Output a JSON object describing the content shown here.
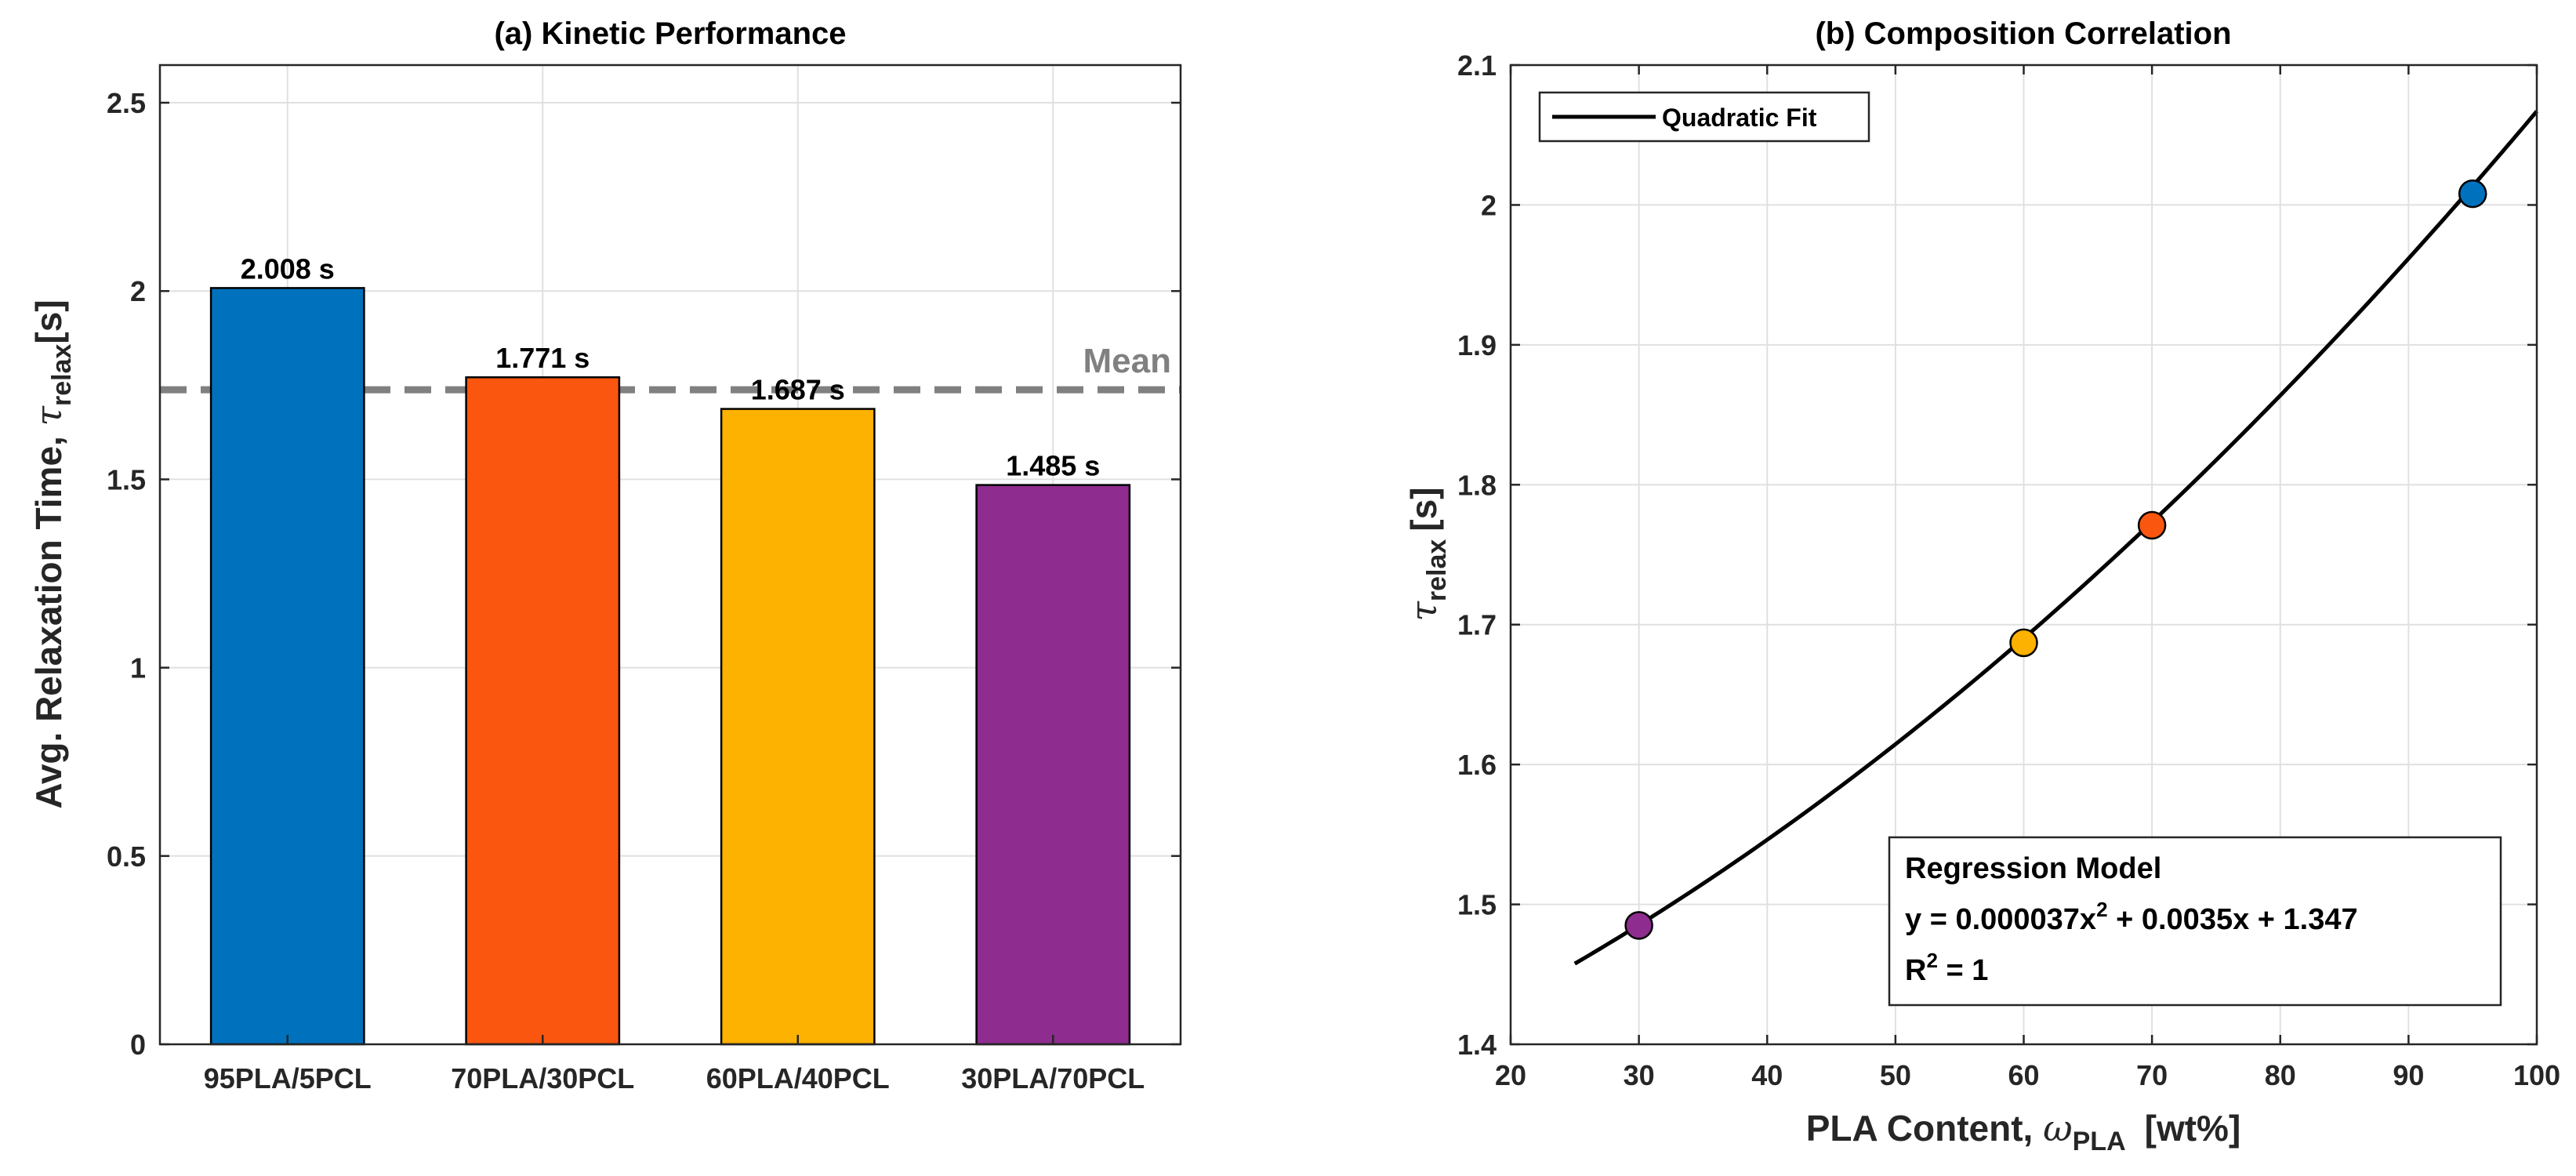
{
  "chart_data": [
    {
      "type": "bar",
      "title": "(a) Kinetic Performance",
      "categories": [
        "95PLA/5PCL",
        "70PLA/30PCL",
        "60PLA/40PCL",
        "30PLA/70PCL"
      ],
      "values": [
        2.008,
        1.771,
        1.687,
        1.485
      ],
      "data_labels": [
        "2.008 s",
        "1.771 s",
        "1.687 s",
        "1.485 s"
      ],
      "colors": [
        "#0072BD",
        "#FA560F",
        "#FDB100",
        "#8E2C8F"
      ],
      "ylabel_prefix": "Avg. Relaxation Time, ",
      "ylabel_symbol": "τ",
      "ylabel_subscript": "relax",
      "ylabel_suffix": "[s]",
      "ylim": [
        0,
        2.6
      ],
      "yticks": [
        0,
        0.5,
        1,
        1.5,
        2,
        2.5
      ],
      "ytick_labels": [
        "0",
        "0.5",
        "1",
        "1.5",
        "2",
        "2.5"
      ],
      "mean_line": {
        "label": "Mean",
        "value": 1.738,
        "color": "#808080",
        "style": "dashed"
      },
      "grid": true
    },
    {
      "type": "scatter",
      "title": "(b) Composition Correlation",
      "x": [
        30,
        60,
        70,
        95
      ],
      "y": [
        1.485,
        1.687,
        1.771,
        2.008
      ],
      "point_colors": [
        "#8E2C8F",
        "#FDB100",
        "#FA560F",
        "#0072BD"
      ],
      "fit": {
        "name": "Quadratic Fit",
        "coefficients": [
          3.7e-05,
          0.0035,
          1.347
        ],
        "x_range": [
          25,
          100
        ],
        "color": "#000000"
      },
      "xlabel_prefix": "PLA Content, ",
      "xlabel_symbol": "ω",
      "xlabel_subscript": "PLA",
      "xlabel_suffix": "[wt%]",
      "ylabel_symbol": "τ",
      "ylabel_subscript": "relax",
      "ylabel_suffix": "[s]",
      "xlim": [
        20,
        100
      ],
      "ylim": [
        1.4,
        2.1
      ],
      "xticks": [
        20,
        30,
        40,
        50,
        60,
        70,
        80,
        90,
        100
      ],
      "xtick_labels": [
        "20",
        "30",
        "40",
        "50",
        "60",
        "70",
        "80",
        "90",
        "100"
      ],
      "yticks": [
        1.4,
        1.5,
        1.6,
        1.7,
        1.8,
        1.9,
        2.0,
        2.1
      ],
      "ytick_labels": [
        "1.4",
        "1.5",
        "1.6",
        "1.7",
        "1.8",
        "1.9",
        "2",
        "2.1"
      ],
      "legend": {
        "position": "top-left",
        "entries": [
          "Quadratic Fit"
        ]
      },
      "annotation": {
        "title": "Regression Model",
        "equation_parts": [
          "y = 0.000037x",
          "2",
          " + 0.0035x + 1.347"
        ],
        "r2_parts": [
          "R",
          "2",
          " = 1"
        ],
        "position": "bottom-right"
      },
      "grid": true
    }
  ]
}
